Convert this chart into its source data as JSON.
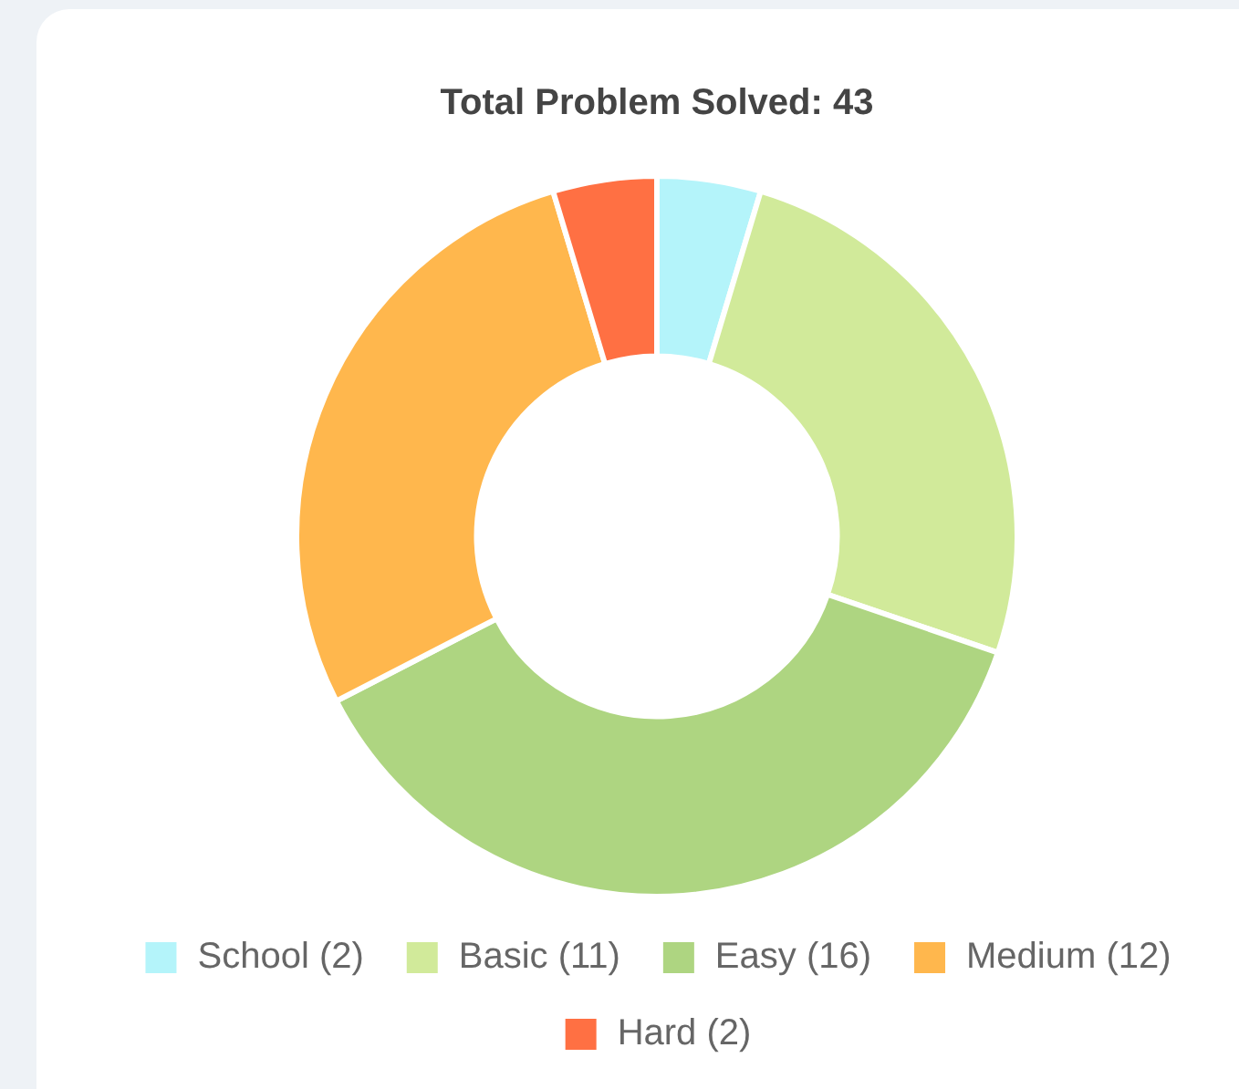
{
  "chart_data": {
    "type": "donut",
    "title": "Total Problem Solved: 43",
    "categories": [
      "School (2)",
      "Basic (11)",
      "Easy (16)",
      "Medium (12)",
      "Hard (2)"
    ],
    "values": [
      2,
      11,
      16,
      12,
      2
    ],
    "colors": [
      "#b4f4fa",
      "#d1ea9a",
      "#aed581",
      "#ffb74d",
      "#ff7043"
    ],
    "legend": "bottom"
  }
}
